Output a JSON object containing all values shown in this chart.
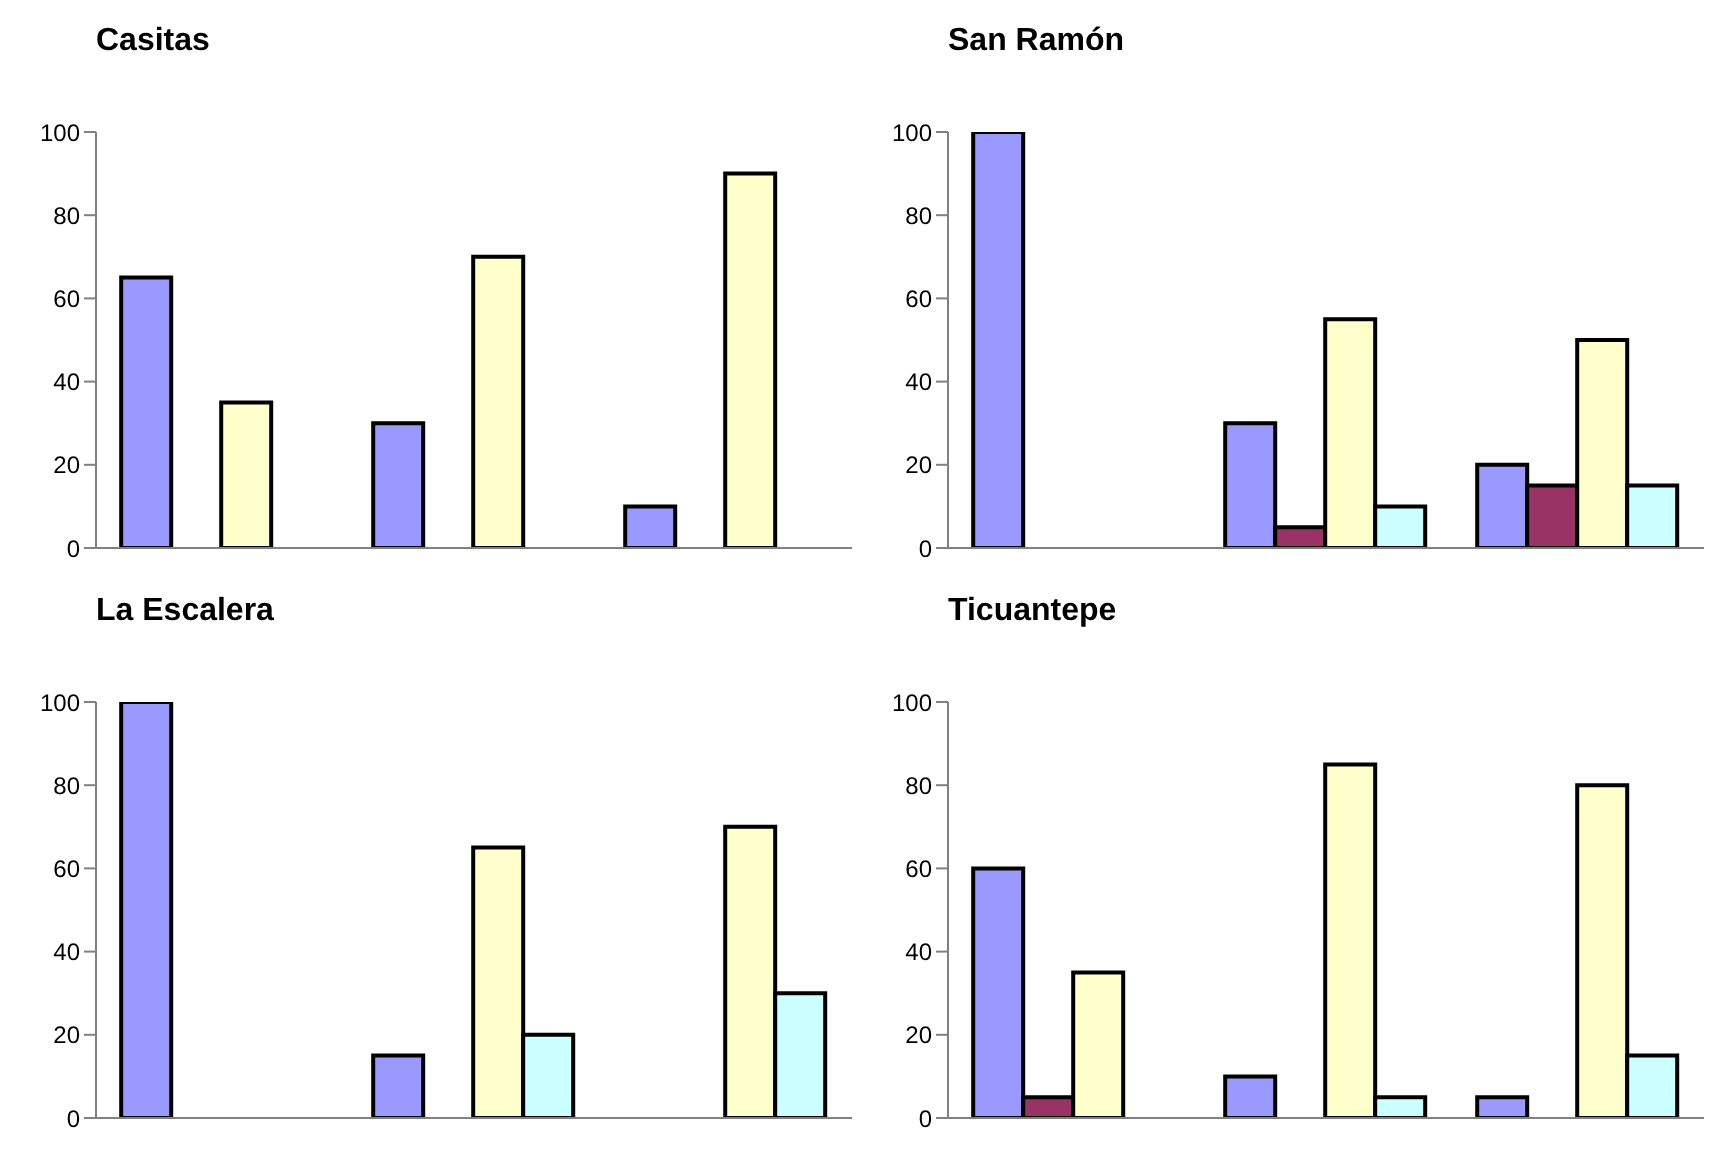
{
  "chart_data": [
    {
      "type": "bar",
      "title": "Casitas",
      "categories": [
        null,
        null,
        null
      ],
      "series": [
        {
          "color": "#9999ff",
          "values": [
            65,
            30,
            10
          ]
        },
        {
          "color": "#993366",
          "values": [
            null,
            null,
            null
          ]
        },
        {
          "color": "#ffffcc",
          "values": [
            35,
            70,
            90
          ]
        },
        {
          "color": "#ccffff",
          "values": [
            null,
            null,
            null
          ]
        }
      ],
      "ylim": [
        0,
        100
      ],
      "yticks": [
        0,
        20,
        40,
        60,
        80,
        100
      ],
      "grid": false,
      "legend": false
    },
    {
      "type": "bar",
      "title": "San Ramón",
      "categories": [
        null,
        null,
        null
      ],
      "series": [
        {
          "color": "#9999ff",
          "values": [
            100,
            30,
            20
          ]
        },
        {
          "color": "#993366",
          "values": [
            null,
            5,
            15
          ]
        },
        {
          "color": "#ffffcc",
          "values": [
            null,
            55,
            50
          ]
        },
        {
          "color": "#ccffff",
          "values": [
            null,
            10,
            15
          ]
        }
      ],
      "ylim": [
        0,
        100
      ],
      "yticks": [
        0,
        20,
        40,
        60,
        80,
        100
      ],
      "grid": false,
      "legend": false
    },
    {
      "type": "bar",
      "title": "La Escalera",
      "categories": [
        null,
        null,
        null
      ],
      "series": [
        {
          "color": "#9999ff",
          "values": [
            100,
            15,
            null
          ]
        },
        {
          "color": "#993366",
          "values": [
            null,
            null,
            null
          ]
        },
        {
          "color": "#ffffcc",
          "values": [
            null,
            65,
            70
          ]
        },
        {
          "color": "#ccffff",
          "values": [
            null,
            20,
            30
          ]
        }
      ],
      "ylim": [
        0,
        100
      ],
      "yticks": [
        0,
        20,
        40,
        60,
        80,
        100
      ],
      "grid": false,
      "legend": false
    },
    {
      "type": "bar",
      "title": "Ticuantepe",
      "categories": [
        null,
        null,
        null
      ],
      "series": [
        {
          "color": "#9999ff",
          "values": [
            60,
            10,
            5
          ]
        },
        {
          "color": "#993366",
          "values": [
            5,
            null,
            null
          ]
        },
        {
          "color": "#ffffcc",
          "values": [
            35,
            85,
            80
          ]
        },
        {
          "color": "#ccffff",
          "values": [
            null,
            5,
            15
          ]
        }
      ],
      "ylim": [
        0,
        100
      ],
      "yticks": [
        0,
        20,
        40,
        60,
        80,
        100
      ],
      "grid": false,
      "legend": false
    }
  ]
}
